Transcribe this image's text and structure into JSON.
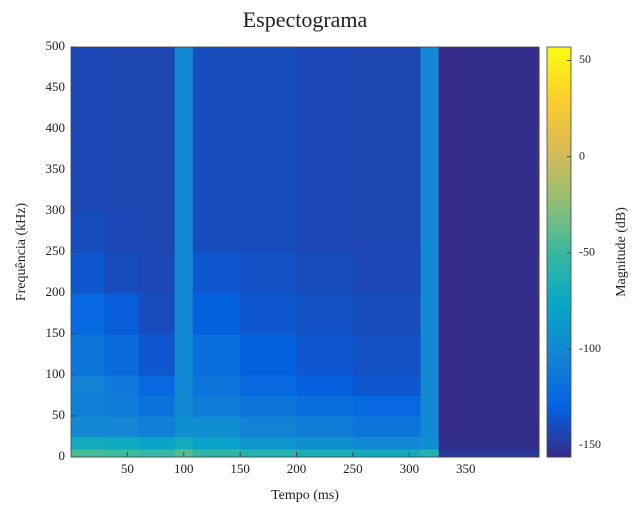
{
  "chart_data": {
    "type": "heatmap",
    "title": "Espectograma",
    "xlabel": "Tempo (ms)",
    "ylabel": "Frequência (kHz)",
    "colorbar_label": "Magnitude (dB)",
    "x_edges": [
      0,
      30,
      60,
      92,
      108,
      150,
      200,
      250,
      310,
      326,
      415
    ],
    "y_edges": [
      0,
      10,
      25,
      50,
      75,
      100,
      150,
      200,
      250,
      300,
      500
    ],
    "z": [
      [
        -45,
        -48,
        -52,
        -40,
        -55,
        -60,
        -65,
        -70,
        -60,
        -150
      ],
      [
        -70,
        -72,
        -78,
        -70,
        -80,
        -90,
        -95,
        -100,
        -95,
        -154
      ],
      [
        -100,
        -102,
        -108,
        -95,
        -95,
        -105,
        -110,
        -115,
        -100,
        -155
      ],
      [
        -108,
        -110,
        -118,
        -100,
        -110,
        -115,
        -120,
        -125,
        -100,
        -155
      ],
      [
        -105,
        -112,
        -125,
        -100,
        -115,
        -125,
        -130,
        -135,
        -100,
        -155
      ],
      [
        -115,
        -122,
        -135,
        -100,
        -120,
        -130,
        -135,
        -138,
        -100,
        -155
      ],
      [
        -125,
        -132,
        -140,
        -100,
        -130,
        -135,
        -138,
        -140,
        -100,
        -155
      ],
      [
        -135,
        -140,
        -142,
        -100,
        -135,
        -138,
        -140,
        -142,
        -100,
        -155
      ],
      [
        -140,
        -142,
        -143,
        -100,
        -140,
        -140,
        -142,
        -143,
        -100,
        -155
      ],
      [
        -142,
        -143,
        -143,
        -100,
        -140,
        -140,
        -142,
        -143,
        -100,
        -155
      ]
    ],
    "xlim": [
      0,
      415
    ],
    "ylim": [
      0,
      500
    ],
    "xticks": [
      50,
      100,
      150,
      200,
      250,
      300,
      350
    ],
    "yticks": [
      0,
      50,
      100,
      150,
      200,
      250,
      300,
      350,
      400,
      450,
      500
    ],
    "clim": [
      -156,
      57
    ],
    "cticks": [
      -150,
      -100,
      -50,
      0,
      50
    ],
    "colormap": [
      "#352a87",
      "#0363e1",
      "#1485d4",
      "#06a7c6",
      "#38b99e",
      "#92bf73",
      "#d9ba56",
      "#fcce2e",
      "#f9fb0e"
    ]
  }
}
